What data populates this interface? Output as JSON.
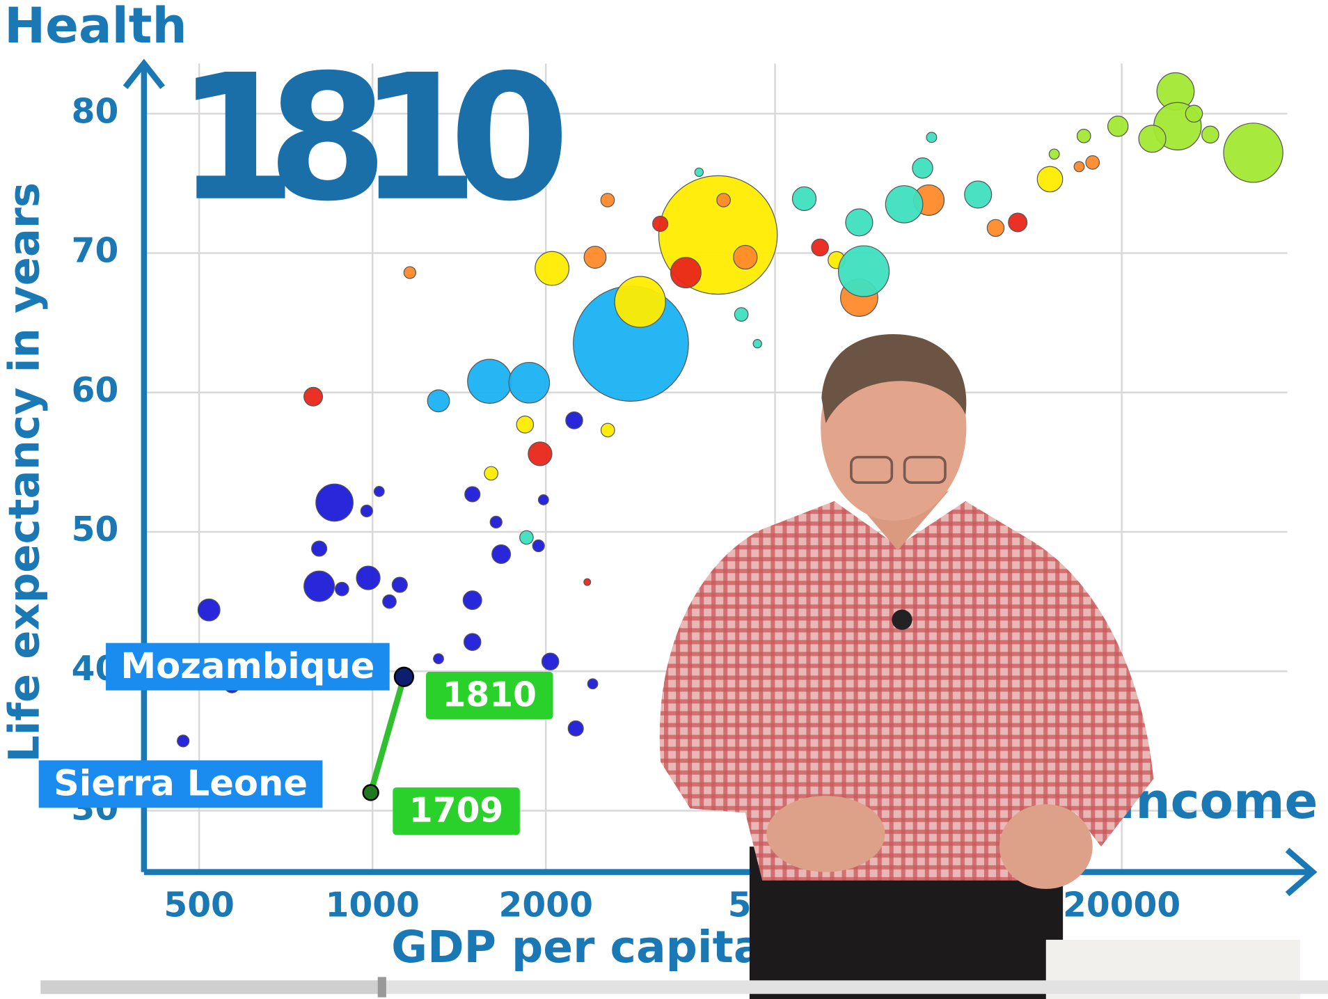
{
  "chart_data": {
    "type": "bubble",
    "title": "Health",
    "year": 1810,
    "x_label": "GDP per capita in",
    "y_label": "Life expectancy in years",
    "x_corner_label": "Income",
    "log_x": true,
    "grid": true,
    "xlim": [
      401,
      41500
    ],
    "ylim": [
      25.6,
      83.6
    ],
    "xticks": [
      500,
      1000,
      2000,
      5000,
      20000
    ],
    "yticks": [
      30,
      40,
      50,
      60,
      70,
      80
    ],
    "series": [
      {
        "color": "#1c1cd8",
        "x": [
          859,
          520,
          808,
          983,
          808,
          1115,
          885,
          1070,
          977,
          1027,
          1491,
          1491,
          1673,
          1491,
          2036,
          2254,
          2240,
          1639,
          1942,
          1981,
          2412,
          1302,
          570,
          469
        ],
        "values": [
          52.1,
          44.4,
          46.1,
          46.7,
          48.8,
          46.2,
          45.9,
          45.0,
          51.5,
          52.9,
          52.7,
          45.1,
          48.4,
          42.1,
          40.7,
          35.9,
          58.0,
          50.7,
          49.0,
          52.3,
          39.1,
          40.9,
          39.0,
          35.0
        ],
        "sizes": [
          22,
          13,
          18,
          14,
          9,
          9,
          8,
          8,
          7,
          6,
          9,
          11,
          11,
          10,
          10,
          9,
          10,
          7,
          7,
          6,
          6,
          6,
          9,
          7
        ]
      },
      {
        "color": "#1ab2f2",
        "x": [
          2810,
          1597,
          1871,
          1302
        ],
        "values": [
          63.5,
          60.8,
          60.7,
          59.4
        ],
        "sizes": [
          68,
          26,
          24,
          13
        ]
      },
      {
        "color": "#ffec00",
        "x": [
          3981,
          2915,
          2050,
          1840,
          2562,
          1607,
          15010,
          6395
        ],
        "values": [
          71.3,
          66.5,
          68.9,
          57.7,
          57.3,
          54.2,
          75.3,
          69.5
        ],
        "sizes": [
          70,
          30,
          20,
          10,
          8,
          8,
          15,
          10
        ]
      },
      {
        "color": "#e8261a",
        "x": [
          789,
          1954,
          3500,
          13195,
          3160,
          5985,
          2360
        ],
        "values": [
          59.7,
          55.6,
          68.6,
          72.2,
          72.1,
          70.4,
          46.4
        ],
        "sizes": [
          11,
          14,
          18,
          11,
          9,
          10,
          4
        ]
      },
      {
        "color": "#ff8a2a",
        "x": [
          1161,
          2435,
          7000,
          9250,
          4440,
          12080,
          16870,
          2560,
          4070,
          17800
        ],
        "values": [
          68.6,
          69.7,
          66.8,
          73.8,
          69.7,
          71.8,
          76.2,
          73.8,
          73.8,
          76.5
        ],
        "sizes": [
          7,
          13,
          22,
          18,
          14,
          10,
          6,
          8,
          8,
          8
        ]
      },
      {
        "color": "#3ee0c0",
        "x": [
          7130,
          8380,
          11260,
          7000,
          9020,
          5620,
          4370,
          1851,
          9350,
          4660,
          3690
        ],
        "values": [
          68.7,
          73.5,
          74.2,
          72.2,
          76.1,
          73.9,
          65.6,
          49.6,
          78.3,
          63.5,
          75.8
        ],
        "sizes": [
          30,
          22,
          16,
          16,
          12,
          14,
          8,
          8,
          6,
          5,
          5
        ]
      },
      {
        "color": "#a2e832",
        "x": [
          24800,
          33840,
          25000,
          22600,
          19700,
          17190,
          28500,
          15270,
          26700
        ],
        "values": [
          81.6,
          77.2,
          79.1,
          78.2,
          79.1,
          78.4,
          78.5,
          77.1,
          80.0
        ],
        "sizes": [
          22,
          35,
          28,
          16,
          12,
          8,
          10,
          6,
          10
        ]
      }
    ],
    "highlights": [
      {
        "name": "Mozambique",
        "x": 1134,
        "y": 39.6,
        "size": 11,
        "color": "#0c1f6e"
      },
      {
        "name": "Sierra Leone",
        "x": 993,
        "y": 31.3,
        "size": 9,
        "color": "#1f7a1f"
      }
    ],
    "trail": {
      "color": "#2fbf2f",
      "x": [
        993,
        1134
      ],
      "values": [
        31.3,
        39.6
      ],
      "labels": [
        "1709",
        "1810"
      ]
    }
  }
}
